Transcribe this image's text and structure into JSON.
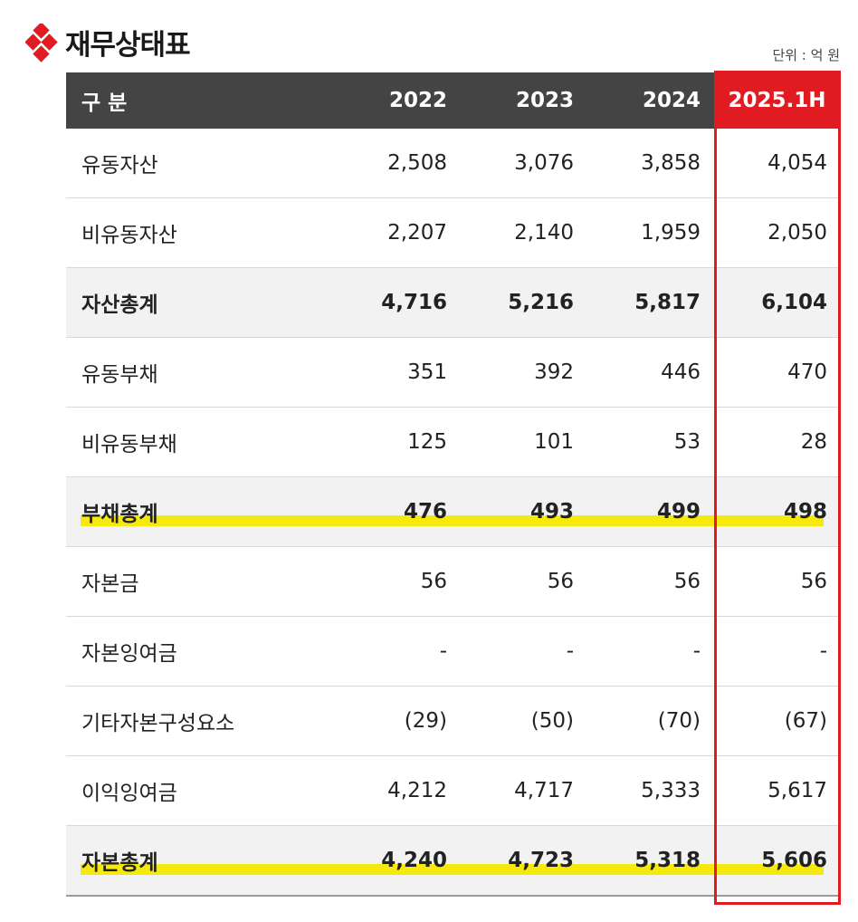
{
  "header": {
    "title": "재무상태표",
    "unit": "단위 : 억 원"
  },
  "table": {
    "columns": [
      "구 분",
      "2022",
      "2023",
      "2024",
      "2025.1H"
    ],
    "rows": [
      {
        "label": "유동자산",
        "values": [
          "2,508",
          "3,076",
          "3,858",
          "4,054"
        ],
        "bold": false,
        "highlight": false
      },
      {
        "label": "비유동자산",
        "values": [
          "2,207",
          "2,140",
          "1,959",
          "2,050"
        ],
        "bold": false,
        "highlight": false
      },
      {
        "label": "자산총계",
        "values": [
          "4,716",
          "5,216",
          "5,817",
          "6,104"
        ],
        "bold": true,
        "highlight": false
      },
      {
        "label": "유동부채",
        "values": [
          "351",
          "392",
          "446",
          "470"
        ],
        "bold": false,
        "highlight": false
      },
      {
        "label": "비유동부채",
        "values": [
          "125",
          "101",
          "53",
          "28"
        ],
        "bold": false,
        "highlight": false
      },
      {
        "label": "부채총계",
        "values": [
          "476",
          "493",
          "499",
          "498"
        ],
        "bold": true,
        "highlight": true
      },
      {
        "label": "자본금",
        "values": [
          "56",
          "56",
          "56",
          "56"
        ],
        "bold": false,
        "highlight": false
      },
      {
        "label": "자본잉여금",
        "values": [
          "-",
          "-",
          "-",
          "-"
        ],
        "bold": false,
        "highlight": false
      },
      {
        "label": "기타자본구성요소",
        "values": [
          "(29)",
          "(50)",
          "(70)",
          "(67)"
        ],
        "bold": false,
        "highlight": false
      },
      {
        "label": "이익잉여금",
        "values": [
          "4,212",
          "4,717",
          "5,333",
          "5,617"
        ],
        "bold": false,
        "highlight": false
      },
      {
        "label": "자본총계",
        "values": [
          "4,240",
          "4,723",
          "5,318",
          "5,606"
        ],
        "bold": true,
        "highlight": true
      }
    ]
  },
  "colors": {
    "accent": "#e01b22",
    "header_bg": "#444444",
    "highlight": "#f5ea0c",
    "bold_row_bg": "#f2f2f2"
  },
  "icons": {
    "logo": "red-diamond-logo-icon"
  }
}
